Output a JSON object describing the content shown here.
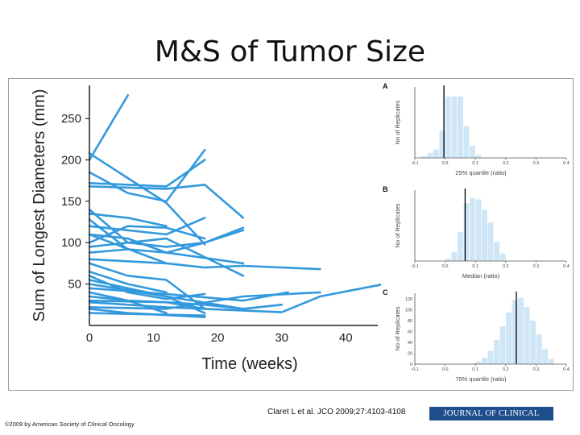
{
  "slide": {
    "title": "M&S of Tumor Size",
    "citation": "Claret L et al. JCO 2009;27:4103-4108",
    "journal": "JOURNAL OF CLINICAL ONCOLOGY",
    "copyright": "©2009 by American Society of Clinical Oncology"
  },
  "colors": {
    "series": "#3399dd",
    "hist_fill": "#cfe6f7",
    "hist_edge": "#ffffff",
    "median_line": "#000000"
  },
  "chart_data": [
    {
      "type": "line",
      "title": "",
      "xlabel": "Time (weeks)",
      "ylabel": "Sum of Longest Diameters (mm)",
      "xlim": [
        0,
        45
      ],
      "ylim": [
        0,
        290
      ],
      "x_ticks": [
        0,
        10,
        20,
        30,
        40
      ],
      "y_ticks": [
        50,
        100,
        150,
        200,
        250
      ],
      "grid": false,
      "series": [
        {
          "x": [
            0,
            6,
            12,
            18
          ],
          "y": [
            208,
            178,
            148,
            98
          ]
        },
        {
          "x": [
            0,
            6
          ],
          "y": [
            200,
            278
          ]
        },
        {
          "x": [
            0,
            6,
            12,
            18
          ],
          "y": [
            185,
            160,
            150,
            212
          ]
        },
        {
          "x": [
            0,
            12,
            18
          ],
          "y": [
            172,
            168,
            200
          ]
        },
        {
          "x": [
            0,
            12,
            18,
            24
          ],
          "y": [
            168,
            165,
            170,
            130
          ]
        },
        {
          "x": [
            0,
            6,
            12,
            18,
            24
          ],
          "y": [
            140,
            100,
            95,
            100,
            118
          ]
        },
        {
          "x": [
            0,
            6,
            12
          ],
          "y": [
            135,
            130,
            120
          ]
        },
        {
          "x": [
            0,
            6
          ],
          "y": [
            128,
            92
          ]
        },
        {
          "x": [
            0,
            12,
            18
          ],
          "y": [
            120,
            110,
            130
          ]
        },
        {
          "x": [
            0,
            6,
            12,
            18,
            24
          ],
          "y": [
            110,
            105,
            88,
            100,
            115
          ]
        },
        {
          "x": [
            0,
            6,
            12,
            18
          ],
          "y": [
            100,
            120,
            118,
            105
          ]
        },
        {
          "x": [
            0,
            12,
            24
          ],
          "y": [
            95,
            105,
            60
          ]
        },
        {
          "x": [
            0,
            6,
            12,
            24
          ],
          "y": [
            88,
            92,
            88,
            75
          ]
        },
        {
          "x": [
            0,
            12,
            18,
            24,
            36
          ],
          "y": [
            80,
            75,
            70,
            72,
            68
          ]
        },
        {
          "x": [
            0,
            6,
            12,
            18
          ],
          "y": [
            75,
            60,
            55,
            20
          ]
        },
        {
          "x": [
            0,
            12
          ],
          "y": [
            110,
            75
          ]
        },
        {
          "x": [
            0,
            6,
            12
          ],
          "y": [
            65,
            50,
            40
          ]
        },
        {
          "x": [
            0,
            6,
            12,
            18
          ],
          "y": [
            60,
            40,
            32,
            38
          ]
        },
        {
          "x": [
            0,
            6,
            12,
            18
          ],
          "y": [
            55,
            45,
            35,
            15
          ]
        },
        {
          "x": [
            0,
            12,
            24,
            30
          ],
          "y": [
            50,
            35,
            20,
            25
          ]
        },
        {
          "x": [
            0,
            12,
            24,
            31
          ],
          "y": [
            45,
            38,
            30,
            40
          ]
        },
        {
          "x": [
            0,
            6,
            12,
            18,
            24
          ],
          "y": [
            40,
            30,
            28,
            25,
            20
          ]
        },
        {
          "x": [
            0,
            6,
            12
          ],
          "y": [
            35,
            30,
            15
          ]
        },
        {
          "x": [
            0,
            12,
            18,
            30,
            36,
            46
          ],
          "y": [
            30,
            28,
            20,
            16,
            35,
            50
          ]
        },
        {
          "x": [
            0,
            6,
            12,
            18
          ],
          "y": [
            28,
            25,
            22,
            20
          ]
        },
        {
          "x": [
            0,
            12,
            24,
            36
          ],
          "y": [
            22,
            20,
            35,
            40
          ]
        },
        {
          "x": [
            0,
            6,
            18
          ],
          "y": [
            20,
            15,
            10
          ]
        },
        {
          "x": [
            0,
            18
          ],
          "y": [
            15,
            12
          ]
        }
      ]
    },
    {
      "type": "bar",
      "panel_label": "A",
      "title": "",
      "xlabel": "25% quartile (ratio)",
      "ylabel": "No of Replicates",
      "xlim": [
        -0.1,
        0.4
      ],
      "x_ticks": [
        "-0.1",
        "0.0",
        "0.1",
        "0.2",
        "0.3",
        "0.4"
      ],
      "y_ticks": [],
      "bin_width": 0.02,
      "bin_starts": [
        -0.08,
        -0.06,
        -0.04,
        -0.02,
        0.0,
        0.02,
        0.04,
        0.06,
        0.08,
        0.1
      ],
      "values": [
        3,
        8,
        14,
        45,
        100,
        100,
        100,
        52,
        20,
        5
      ],
      "ylim": [
        0,
        115
      ],
      "median": -0.004
    },
    {
      "type": "bar",
      "panel_label": "B",
      "title": "",
      "xlabel": "Median (ratio)",
      "ylabel": "No of Replicates",
      "xlim": [
        -0.1,
        0.4
      ],
      "x_ticks": [
        "-0.1",
        "0.0",
        "0.1",
        "0.2",
        "0.3",
        "0.4"
      ],
      "y_ticks": [],
      "bin_width": 0.02,
      "bin_starts": [
        0.0,
        0.02,
        0.04,
        0.06,
        0.08,
        0.1,
        0.12,
        0.14,
        0.16,
        0.18
      ],
      "values": [
        4,
        14,
        45,
        90,
        98,
        96,
        80,
        60,
        30,
        12
      ],
      "ylim": [
        0,
        110
      ],
      "median": 0.066
    },
    {
      "type": "bar",
      "panel_label": "C",
      "title": "",
      "xlabel": "75% quartile (ratio)",
      "ylabel": "No of Replicates",
      "xlim": [
        -0.1,
        0.4
      ],
      "x_ticks": [
        "-0.1",
        "0.0",
        "0.1",
        "0.2",
        "0.3",
        "0.4"
      ],
      "y_ticks": [
        "0",
        "20",
        "40",
        "60",
        "80",
        "100",
        "120"
      ],
      "bin_width": 0.02,
      "bin_starts": [
        0.1,
        0.12,
        0.14,
        0.16,
        0.18,
        0.2,
        0.22,
        0.24,
        0.26,
        0.28,
        0.3,
        0.32,
        0.34
      ],
      "values": [
        5,
        12,
        25,
        45,
        70,
        95,
        118,
        122,
        105,
        80,
        55,
        28,
        10
      ],
      "ylim": [
        0,
        130
      ],
      "median": 0.235
    }
  ]
}
